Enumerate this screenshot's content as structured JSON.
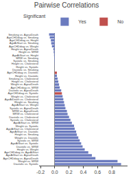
{
  "chart_data": {
    "type": "bar",
    "orientation": "horizontal",
    "title": "Pairwise Correlations",
    "legend_title": "Significant",
    "legend": "upper right",
    "grid": false,
    "categories": [
      "Smoking vs. AgeatDeath",
      "AgeCHDdiag vs. Smoking",
      "AgeCHDdiag vs. Height",
      "AgeAtStart vs. Smoking",
      "AgeCHDdiag vs. Weight",
      "Height vs. AgeatDeath",
      "Height vs. MRW",
      "AgeAtStart vs. Height",
      "MRW vs. Smoking",
      "Systolic vs. Smoking",
      "Height vs. Cholesterol",
      "Height vs. Systolic",
      "Diastolic vs. Smoking",
      "AgeCHDdiag vs. Diastolic",
      "Height vs. Diastolic",
      "Smoking vs. Cholesterol",
      "Height vs. Cholesterol",
      "Weight vs. AgeatDeath",
      "AgeCHDdiag vs. MRW",
      "Diastolic vs. AgeatDeath",
      "AgeCHDdiag vs. Systolic",
      "Weight vs. Cholesterol",
      "AgeAtDeath vs. Cholesterol",
      "Weight vs. Smoking",
      "AgeAtStart vs. Weight",
      "Systolic vs. AgeatDeath",
      "MRW vs. AgeatDeath",
      "MRW vs. Cholesterol",
      "Diastolic vs. Cholesterol",
      "Systolic vs. Cholesterol",
      "AgeAtStart vs. MRW",
      "Weight vs. Systolic",
      "AgeAtStart vs. Cholesterol",
      "AgeAtStart vs. Diastolic",
      "Height vs. Smoking",
      "Weight vs. Diastolic",
      "Systolic vs. MRW",
      "AgeAtStart vs. Systolic",
      "Diastolic vs. MRW",
      "Height vs. Weight",
      "AgeCHDdiag vs. AgeAtStart",
      "AgeAtStart vs. AgeatDeath",
      "AgeCHDdiag vs. AgeatDeath",
      "Weight vs. MRW",
      "Diastolic vs. Systolic"
    ],
    "series": [
      {
        "name": "Yes",
        "color": "#6b7bbf",
        "values": [
          -0.08,
          -0.07,
          -0.055,
          -0.05,
          -0.04,
          -0.02,
          -0.015,
          -0.01,
          -0.008,
          -0.006,
          -0.004,
          -0.002,
          -0.001,
          null,
          0.03,
          0.04,
          0.05,
          0.06,
          0.07,
          0.09,
          null,
          0.11,
          0.12,
          0.13,
          0.14,
          0.15,
          0.17,
          0.18,
          0.2,
          0.22,
          0.24,
          0.27,
          0.28,
          0.3,
          0.31,
          0.33,
          0.35,
          0.37,
          0.39,
          0.42,
          0.47,
          0.52,
          0.57,
          0.88,
          0.93
        ]
      },
      {
        "name": "No",
        "color": "#c0504d",
        "values": [
          null,
          null,
          null,
          null,
          null,
          null,
          null,
          null,
          null,
          null,
          null,
          null,
          null,
          0.03,
          null,
          null,
          null,
          null,
          null,
          null,
          0.1,
          null,
          null,
          null,
          null,
          null,
          null,
          null,
          null,
          null,
          null,
          null,
          null,
          null,
          null,
          null,
          null,
          null,
          null,
          null,
          null,
          null,
          null,
          null,
          null
        ]
      }
    ],
    "xlim": [
      -0.22,
      1.02
    ],
    "xticks": [
      -0.2,
      {
        "value": 0,
        "label": "0.0"
      },
      0.2,
      0.4,
      0.6,
      0.8
    ]
  }
}
